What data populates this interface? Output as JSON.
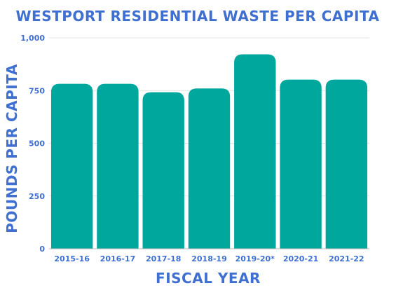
{
  "colors": {
    "accent": "#3f6fd1",
    "bar": "#00a79d",
    "grid": "#e4e4e4",
    "axis": "#b8b8b8"
  },
  "chart_data": {
    "type": "bar",
    "title": "WESTPORT RESIDENTIAL WASTE PER CAPITA",
    "xlabel": "FISCAL YEAR",
    "ylabel": "POUNDS PER CAPITA",
    "categories": [
      "2015-16",
      "2016-17",
      "2017-18",
      "2018-19",
      "2019-20*",
      "2020-21",
      "2021-22"
    ],
    "values": [
      782,
      782,
      742,
      760,
      922,
      802,
      802
    ],
    "ylim": [
      0,
      1000
    ],
    "yticks": [
      0,
      250,
      500,
      750,
      1000
    ],
    "ytick_labels": [
      "0",
      "250",
      "500",
      "750",
      "1,000"
    ],
    "grid": true,
    "legend": "none"
  }
}
